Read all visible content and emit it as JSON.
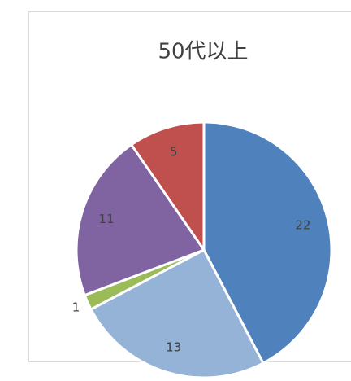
{
  "chart_data": {
    "type": "pie",
    "title": "50代以上",
    "values": [
      22,
      13,
      1,
      11,
      5
    ],
    "colors": [
      "#4f81bd",
      "#95b3d7",
      "#9bbb59",
      "#8064a2",
      "#c0504d"
    ]
  }
}
